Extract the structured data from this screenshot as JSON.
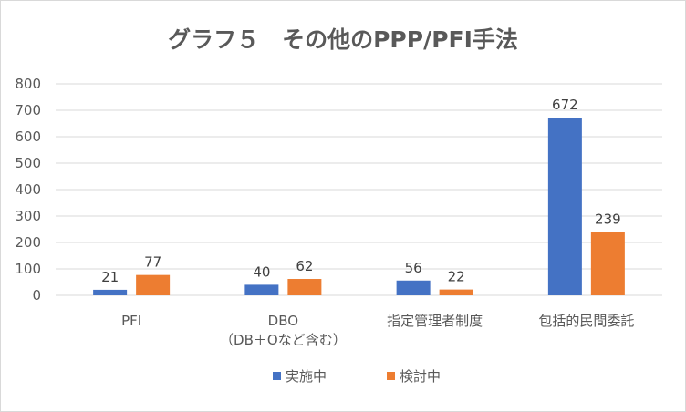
{
  "chart_data": {
    "type": "bar",
    "title": "グラフ５　その他のPPP/PFI手法",
    "categories": [
      [
        "PFI"
      ],
      [
        "DBO",
        "（DB＋Oなど含む）"
      ],
      [
        "指定管理者制度"
      ],
      [
        "包括的民間委託"
      ]
    ],
    "series": [
      {
        "name": "実施中",
        "values": [
          21,
          40,
          56,
          672
        ],
        "color": "#4472c4"
      },
      {
        "name": "検討中",
        "values": [
          77,
          62,
          22,
          239
        ],
        "color": "#ed7d31"
      }
    ],
    "ylim": [
      0,
      800
    ],
    "yticks": [
      0,
      100,
      200,
      300,
      400,
      500,
      600,
      700,
      800
    ],
    "grid": true,
    "data_labels": true,
    "legend_position": "bottom",
    "gridline_color": "#d9d9d9"
  }
}
